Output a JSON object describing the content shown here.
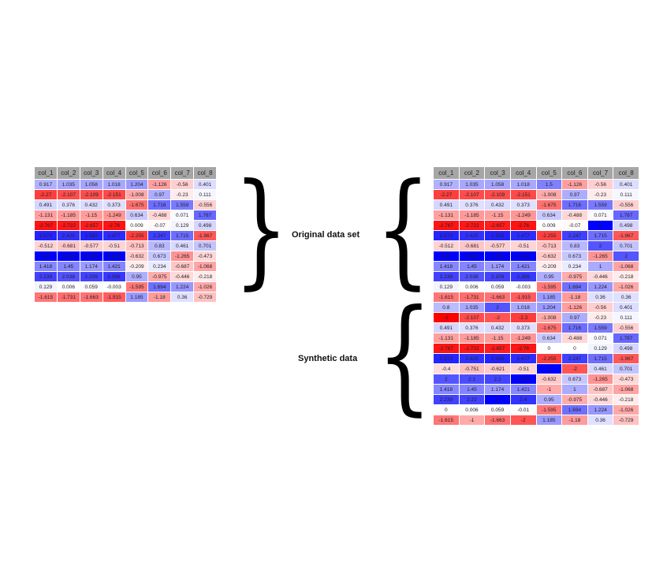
{
  "columns": [
    "col_1",
    "col_2",
    "col_3",
    "col_4",
    "col_5",
    "col_6",
    "col_7",
    "col_8"
  ],
  "labels": {
    "original": "Original data set",
    "synthetic": "Synthetic data"
  },
  "original_rows": [
    [
      "0.917",
      "1.035",
      "1.058",
      "1.018",
      "1.204",
      "-1.126",
      "-0.56",
      "0.401"
    ],
    [
      "-2.27",
      "-2.107",
      "-2.109",
      "-2.151",
      "-1.008",
      "0.97",
      "-0.23",
      "0.111"
    ],
    [
      "0.491",
      "0.376",
      "0.432",
      "0.373",
      "-1.675",
      "1.716",
      "1.559",
      "-0.556"
    ],
    [
      "-1.131",
      "-1.185",
      "-1.15",
      "-1.249",
      "0.634",
      "-0.488",
      "0.071",
      "1.787"
    ],
    [
      "-2.767",
      "-2.722",
      "-2.657",
      "-2.76",
      "0.009",
      "-0.07",
      "0.129",
      "0.498"
    ],
    [
      "2.572",
      "2.425",
      "2.583",
      "2.477",
      "-2.255",
      "2.247",
      "1.715",
      "-1.967"
    ],
    [
      "-0.512",
      "-0.681",
      "-0.577",
      "-0.51",
      "-0.713",
      "0.83",
      "0.461",
      "0.701"
    ],
    [
      "3.07",
      "3.168",
      "3.251",
      "3.104",
      "-0.632",
      "0.673",
      "-1.265",
      "-0.473"
    ],
    [
      "1.418",
      "1.45",
      "1.174",
      "1.421",
      "-0.209",
      "0.234",
      "-0.687",
      "-1.068"
    ],
    [
      "2.239",
      "2.038",
      "2.209",
      "2.356",
      "0.95",
      "-0.975",
      "-0.446",
      "-0.218"
    ],
    [
      "0.129",
      "0.006",
      "0.059",
      "-0.003",
      "-1.595",
      "1.694",
      "1.224",
      "-1.026"
    ],
    [
      "-1.615",
      "-1.731",
      "-1.663",
      "-1.915",
      "1.185",
      "-1.18",
      "0.36",
      "-0.729"
    ]
  ],
  "synthetic_rows": [
    [
      "0.917",
      "1.035",
      "1.058",
      "1.018",
      "1.5",
      "-1.126",
      "-0.56",
      "0.401"
    ],
    [
      "-2.27",
      "-2.107",
      "-2.109",
      "-2.151",
      "-1.008",
      "0.97",
      "-0.23",
      "0.111"
    ],
    [
      "0.491",
      "0.376",
      "0.432",
      "0.373",
      "-1.675",
      "1.716",
      "1.559",
      "-0.556"
    ],
    [
      "-1.131",
      "-1.185",
      "-1.15",
      "-1.249",
      "0.634",
      "-0.488",
      "0.071",
      "1.787"
    ],
    [
      "-2.767",
      "-2.722",
      "-2.657",
      "-2.76",
      "0.009",
      "-0.07",
      "3",
      "0.498"
    ],
    [
      "2.572",
      "2.425",
      "2.583",
      "2.477",
      "-2.255",
      "2.247",
      "1.715",
      "-1.967"
    ],
    [
      "-0.512",
      "-0.681",
      "-0.577",
      "-0.51",
      "-0.713",
      "0.83",
      "2",
      "0.701"
    ],
    [
      "3.07",
      "3.168",
      "3.251",
      "3.104",
      "-0.632",
      "0.673",
      "-1.265",
      "2"
    ],
    [
      "1.418",
      "1.45",
      "1.174",
      "1.421",
      "-0.209",
      "0.234",
      "1",
      "-1.068"
    ],
    [
      "2.239",
      "2.038",
      "2.209",
      "2.356",
      "0.95",
      "-0.975",
      "-0.446",
      "-0.218"
    ],
    [
      "0.129",
      "0.006",
      "0.059",
      "-0.003",
      "-1.595",
      "1.694",
      "1.224",
      "-1.026"
    ],
    [
      "-1.615",
      "-1.731",
      "-1.663",
      "-1.915",
      "1.185",
      "-1.18",
      "0.36",
      "0.36"
    ],
    [
      "0.8",
      "1.035",
      "2",
      "1.018",
      "1.204",
      "-1.126",
      "-0.56",
      "0.401"
    ],
    [
      "-3",
      "-2.107",
      "-2",
      "-2.3",
      "-1.008",
      "0.97",
      "-0.23",
      "0.111"
    ],
    [
      "0.491",
      "0.376",
      "0.432",
      "0.373",
      "-1.675",
      "1.716",
      "1.559",
      "-0.556"
    ],
    [
      "-1.131",
      "-1.185",
      "-1.15",
      "-1.249",
      "0.634",
      "-0.488",
      "0.071",
      "1.787"
    ],
    [
      "-2.767",
      "-2.722",
      "-2.657",
      "-2.76",
      "0",
      "0",
      "0.129",
      "0.498"
    ],
    [
      "2.572",
      "2.425",
      "2.583",
      "2.477",
      "-2.255",
      "2.247",
      "1.715",
      "-1.967"
    ],
    [
      "-0.4",
      "-0.751",
      "-0.621",
      "-0.51",
      "3",
      "-2",
      "0.461",
      "0.701"
    ],
    [
      "2",
      "2.1",
      "2.2",
      "3.104",
      "-0.632",
      "0.673",
      "-1.265",
      "-0.473"
    ],
    [
      "1.418",
      "1.45",
      "1.174",
      "1.421",
      "-1",
      "1",
      "-0.687",
      "-1.068"
    ],
    [
      "2.239",
      "2.22",
      "3",
      "2.4",
      "0.95",
      "-0.975",
      "-0.446",
      "-0.218"
    ],
    [
      "0",
      "0.006",
      "0.059",
      "-0.01",
      "-1.595",
      "1.694",
      "1.224",
      "-1.026"
    ],
    [
      "-1.615",
      "-1",
      "-1.663",
      "-2",
      "1.185",
      "-1.18",
      "0.36",
      "-0.729"
    ]
  ]
}
